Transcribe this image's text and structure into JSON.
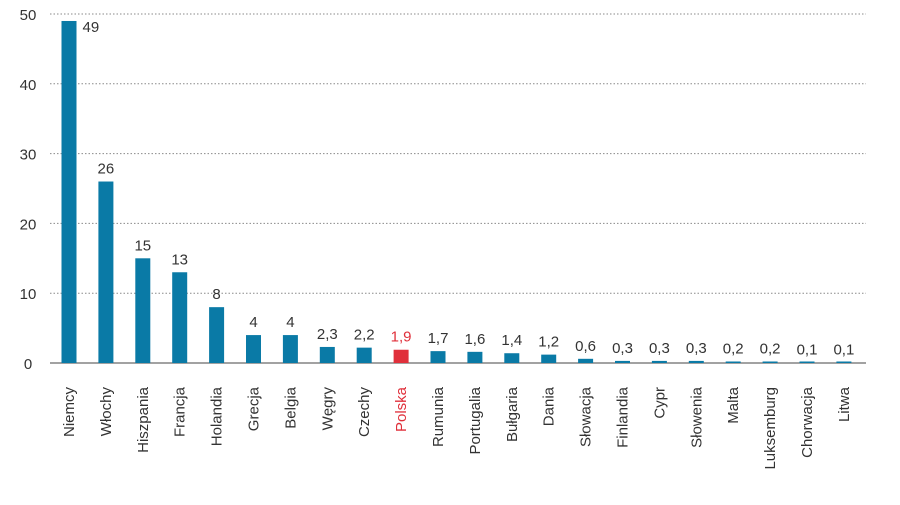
{
  "chart_data": {
    "type": "bar",
    "title": "",
    "xlabel": "",
    "ylabel": "",
    "ylim": [
      0,
      50
    ],
    "yticks": [
      "0",
      "10",
      "20",
      "30",
      "40",
      "50"
    ],
    "grid": "horizontal dotted",
    "legend": "none",
    "categories": [
      "Niemcy",
      "Włochy",
      "Hiszpania",
      "Francja",
      "Holandia",
      "Grecja",
      "Belgia",
      "Węgry",
      "Czechy",
      "Polska",
      "Rumunia",
      "Portugalia",
      "Bułgaria",
      "Dania",
      "Słowacja",
      "Finlandia",
      "Cypr",
      "Słowenia",
      "Malta",
      "Luksemburg",
      "Chorwacja",
      "Litwa"
    ],
    "values": [
      49,
      26,
      15,
      13,
      8,
      4,
      4,
      2.3,
      2.2,
      1.9,
      1.7,
      1.6,
      1.4,
      1.2,
      0.6,
      0.3,
      0.3,
      0.3,
      0.2,
      0.2,
      0.1,
      0.1
    ],
    "value_labels": [
      "49",
      "26",
      "15",
      "13",
      "8",
      "4",
      "4",
      "2,3",
      "2,2",
      "1,9",
      "1,7",
      "1,6",
      "1,4",
      "1,2",
      "0,6",
      "0,3",
      "0,3",
      "0,3",
      "0,2",
      "0,2",
      "0,1",
      "0,1"
    ],
    "highlight_category": "Polska",
    "colors": {
      "bar": "#0a7aa6",
      "highlight": "#e0303b",
      "text": "#333333",
      "grid": "#8a8a8a",
      "axis": "#444444"
    }
  }
}
